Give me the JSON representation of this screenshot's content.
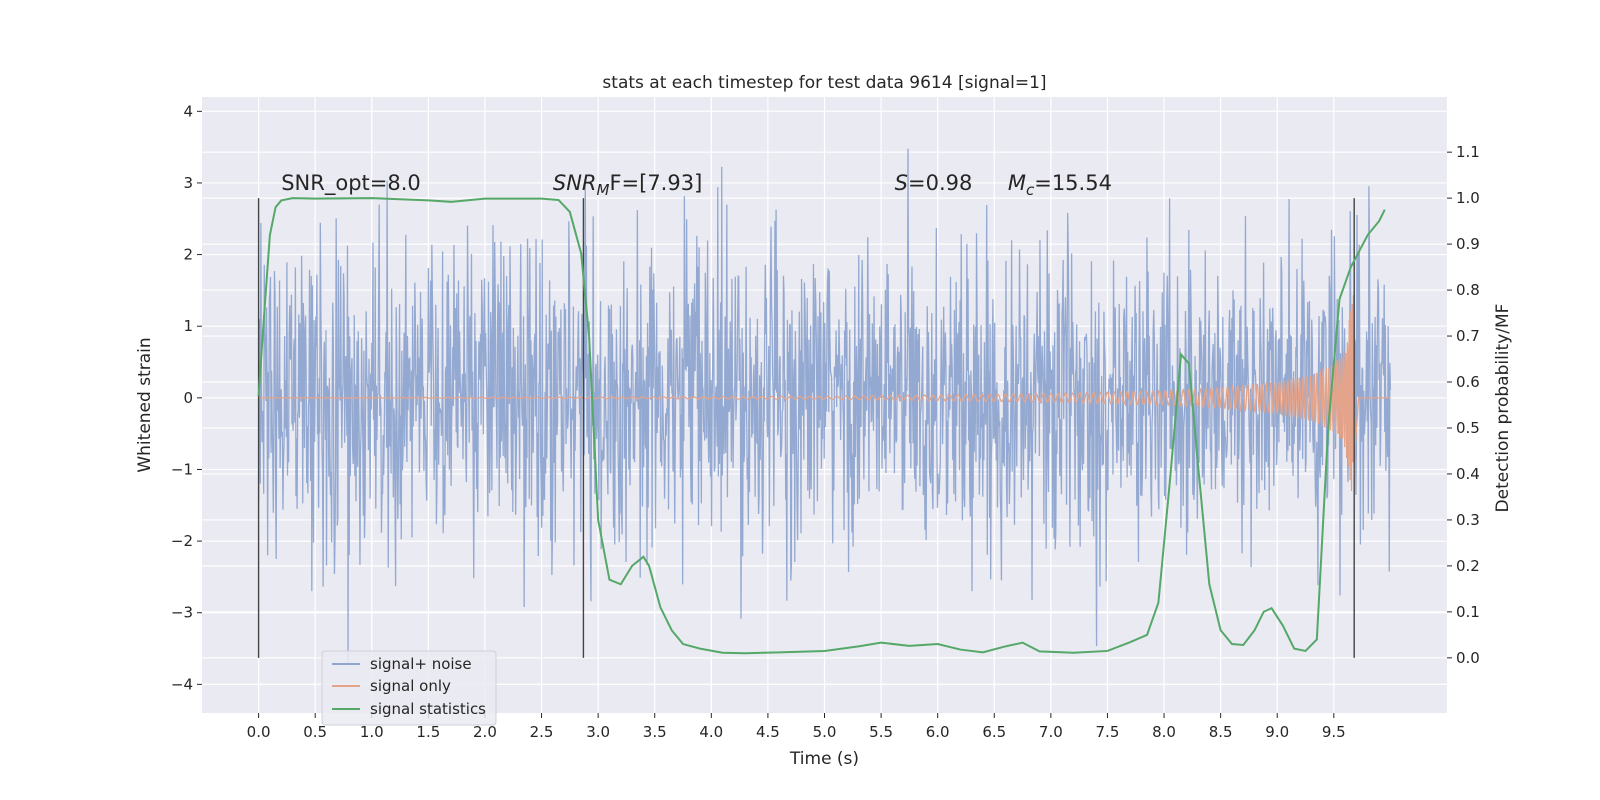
{
  "chart_data": {
    "type": "line",
    "title": "stats at each timestep for test data 9614 [signal=1]",
    "xlabel": "Time (s)",
    "ylabel": "Whitened strain",
    "y2label": "Detection probability/MF",
    "xlim": [
      -0.5,
      10.5
    ],
    "ylim": [
      -4.4,
      4.2
    ],
    "y2lim": [
      -0.12,
      1.22
    ],
    "x_ticks": [
      "0.0",
      "0.5",
      "1.0",
      "1.5",
      "2.0",
      "2.5",
      "3.0",
      "3.5",
      "4.0",
      "4.5",
      "5.0",
      "5.5",
      "6.0",
      "6.5",
      "7.0",
      "7.5",
      "8.0",
      "8.5",
      "9.0",
      "9.5"
    ],
    "x_tick_values": [
      0,
      0.5,
      1,
      1.5,
      2,
      2.5,
      3,
      3.5,
      4,
      4.5,
      5,
      5.5,
      6,
      6.5,
      7,
      7.5,
      8,
      8.5,
      9,
      9.5
    ],
    "y_ticks": [
      "−4",
      "−3",
      "−2",
      "−1",
      "0",
      "1",
      "2",
      "3",
      "4"
    ],
    "y_tick_values": [
      -4,
      -3,
      -2,
      -1,
      0,
      1,
      2,
      3,
      4
    ],
    "y2_ticks": [
      "0.0",
      "0.1",
      "0.2",
      "0.3",
      "0.4",
      "0.5",
      "0.6",
      "0.7",
      "0.8",
      "0.9",
      "1.0",
      "1.1"
    ],
    "y2_tick_values": [
      0,
      0.1,
      0.2,
      0.3,
      0.4,
      0.5,
      0.6,
      0.7,
      0.8,
      0.9,
      1.0,
      1.1
    ],
    "grid": true,
    "legend_position": "lower-left",
    "background": "#eaeaf2",
    "annotations": {
      "snr_opt": "SNR_opt=8.0",
      "snr_mf_main": "SNR",
      "snr_mf_sub": "M",
      "snr_mf_tail": "F=[7.93]",
      "s_main": "S",
      "s_tail": "=0.98",
      "mc_main": "M",
      "mc_sub": "c",
      "mc_tail": "=15.54"
    },
    "vertical_markers_x": [
      0.0,
      2.87,
      9.68
    ],
    "series": [
      {
        "name": "signal+ noise",
        "color": "#8fa5cf",
        "x_range": [
          0.0,
          10.0
        ],
        "approx_amplitude_range": [
          -4.05,
          3.8
        ],
        "typical_envelope": [
          -2.3,
          2.6
        ]
      },
      {
        "name": "signal only",
        "color": "#e4a48b",
        "chirp_envelope": {
          "x": [
            0.0,
            5.0,
            6.0,
            7.0,
            7.5,
            8.0,
            8.5,
            9.0,
            9.3,
            9.5,
            9.6,
            9.68,
            9.72,
            10.0
          ],
          "amplitude": [
            0.0,
            0.02,
            0.04,
            0.06,
            0.08,
            0.1,
            0.14,
            0.22,
            0.32,
            0.48,
            0.7,
            1.55,
            0.0,
            0.0
          ]
        }
      },
      {
        "name": "signal statistics",
        "color": "#55a868",
        "x": [
          0.0,
          0.05,
          0.1,
          0.15,
          0.2,
          0.3,
          0.5,
          1.0,
          1.5,
          1.7,
          2.0,
          2.5,
          2.65,
          2.75,
          2.85,
          2.92,
          3.0,
          3.1,
          3.2,
          3.3,
          3.4,
          3.45,
          3.55,
          3.65,
          3.75,
          3.9,
          4.1,
          4.3,
          4.6,
          5.0,
          5.3,
          5.5,
          5.75,
          6.0,
          6.2,
          6.4,
          6.6,
          6.75,
          6.9,
          7.2,
          7.5,
          7.7,
          7.85,
          7.95,
          8.05,
          8.15,
          8.22,
          8.3,
          8.4,
          8.5,
          8.6,
          8.7,
          8.8,
          8.88,
          8.95,
          9.05,
          9.15,
          9.25,
          9.35,
          9.45,
          9.55,
          9.65,
          9.8,
          9.9,
          9.95
        ],
        "y": [
          0.57,
          0.75,
          0.92,
          0.98,
          0.995,
          1.0,
          0.999,
          1.0,
          0.995,
          0.992,
          0.999,
          0.999,
          0.996,
          0.97,
          0.88,
          0.7,
          0.3,
          0.17,
          0.16,
          0.2,
          0.22,
          0.2,
          0.11,
          0.06,
          0.03,
          0.02,
          0.011,
          0.01,
          0.012,
          0.015,
          0.025,
          0.033,
          0.026,
          0.03,
          0.018,
          0.012,
          0.025,
          0.033,
          0.014,
          0.011,
          0.015,
          0.034,
          0.05,
          0.12,
          0.38,
          0.66,
          0.64,
          0.42,
          0.16,
          0.06,
          0.03,
          0.028,
          0.06,
          0.1,
          0.108,
          0.07,
          0.02,
          0.015,
          0.04,
          0.5,
          0.78,
          0.85,
          0.92,
          0.95,
          0.975
        ]
      }
    ]
  }
}
